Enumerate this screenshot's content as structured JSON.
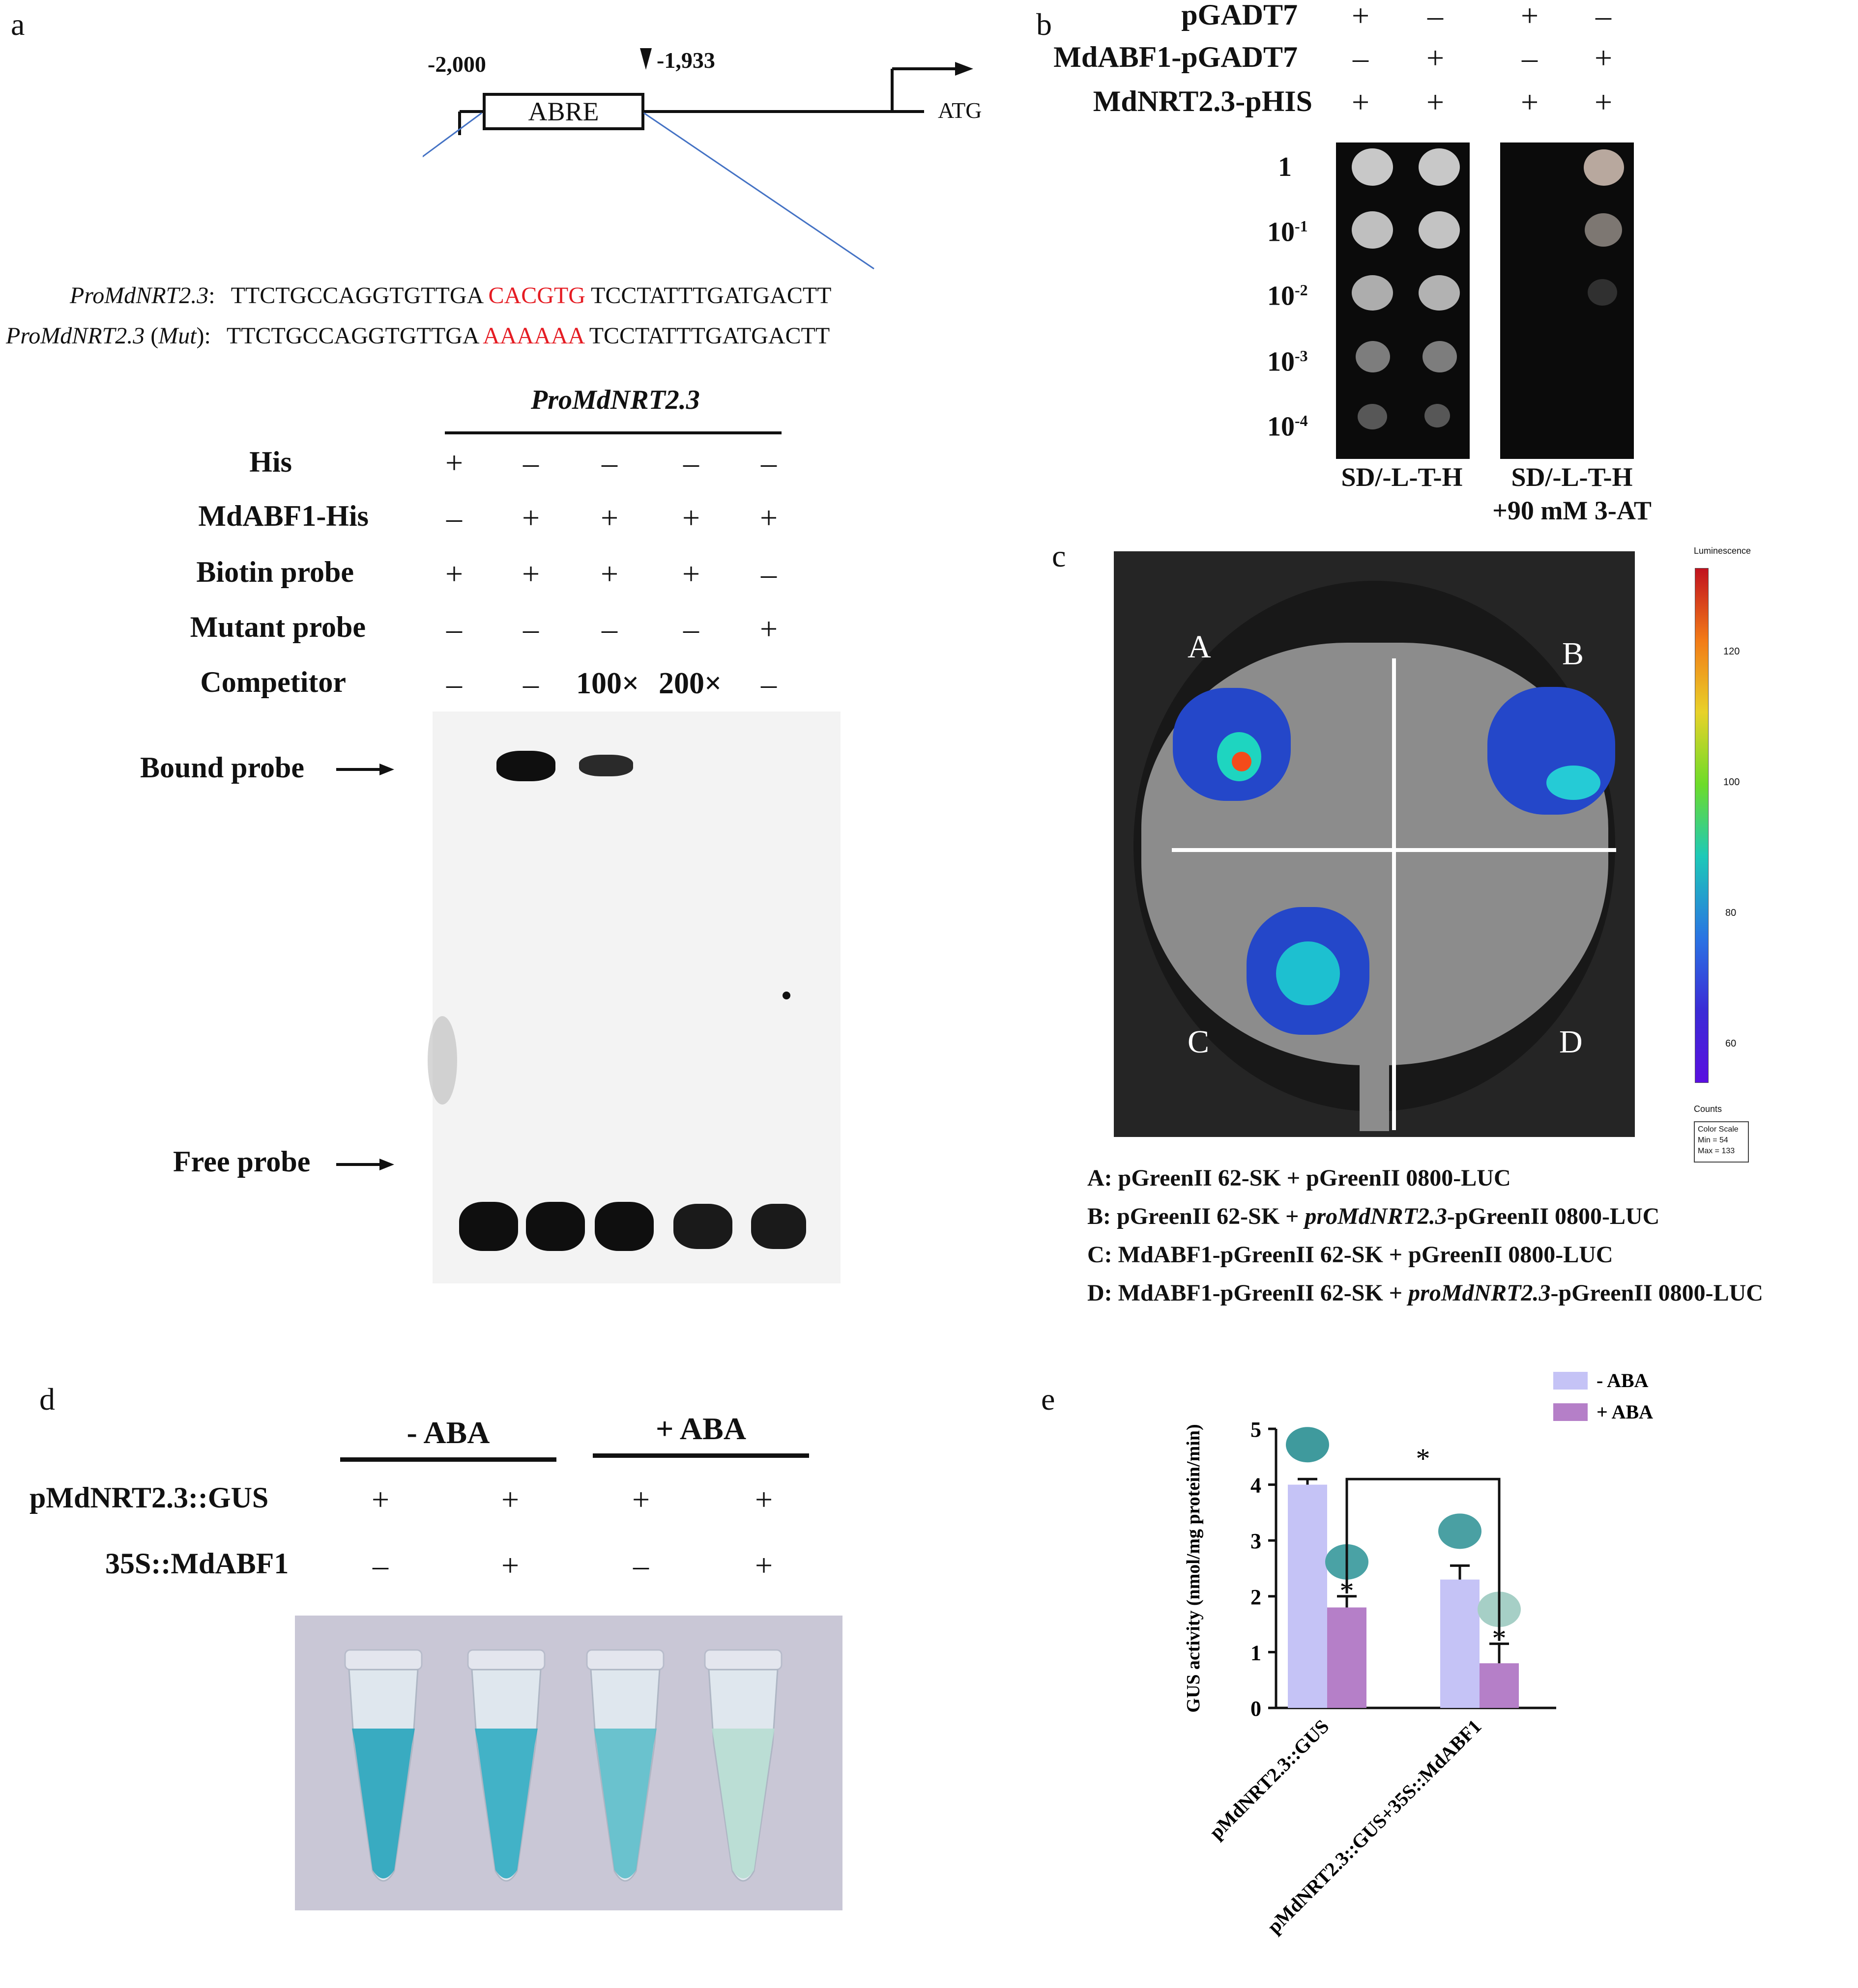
{
  "panel_a": {
    "letter": "a",
    "promoter": {
      "start_label": "-2,000",
      "site_label": "-1,933",
      "box_label": "ABRE",
      "atg_label": "ATG"
    },
    "seq_wt_name": "ProMdNRT2.3",
    "seq_wt_prefix": "TTCTGCCAGGTGTTGA",
    "seq_wt_motif": "CACGTG",
    "seq_wt_suffix": "TCCTATTTGATGACTT",
    "seq_mut_name": "ProMdNRT2.3",
    "seq_mut_tag": "Mut",
    "seq_mut_prefix": "TTCTGCCAGGTGTTGA",
    "seq_mut_motif": "AAAAAA",
    "seq_mut_suffix": "TCCTATTTGATGACTT",
    "emsa_header": "ProMdNRT2.3",
    "rows": [
      {
        "label": "His",
        "signs": [
          "+",
          "–",
          "–",
          "–",
          "–"
        ]
      },
      {
        "label": "MdABF1-His",
        "signs": [
          "–",
          "+",
          "+",
          "+",
          "+"
        ]
      },
      {
        "label": "Biotin probe",
        "signs": [
          "+",
          "+",
          "+",
          "+",
          "–"
        ]
      },
      {
        "label": "Mutant probe",
        "signs": [
          "–",
          "–",
          "–",
          "–",
          "+"
        ]
      },
      {
        "label": "Competitor",
        "signs": [
          "–",
          "–",
          "100×",
          "200×",
          "–"
        ]
      }
    ],
    "bound_label": "Bound probe",
    "free_label": "Free probe"
  },
  "panel_b": {
    "letter": "b",
    "rows": [
      {
        "label": "pGADT7",
        "signs": [
          "+",
          "–",
          "+",
          "–"
        ]
      },
      {
        "label": "MdABF1-pGADT7",
        "signs": [
          "–",
          "+",
          "–",
          "+"
        ]
      },
      {
        "label": "MdNRT2.3-pHIS",
        "signs": [
          "+",
          "+",
          "+",
          "+"
        ]
      }
    ],
    "dilutions": [
      {
        "base": "1",
        "exp": ""
      },
      {
        "base": "10",
        "exp": "-1"
      },
      {
        "base": "10",
        "exp": "-2"
      },
      {
        "base": "10",
        "exp": "-3"
      },
      {
        "base": "10",
        "exp": "-4"
      }
    ],
    "plate1_label": "SD/-L-T-H",
    "plate2_label_line1": "SD/-L-T-H",
    "plate2_label_line2": "+90 mM 3-AT"
  },
  "panel_c": {
    "letter": "c",
    "quadrants": [
      "A",
      "B",
      "C",
      "D"
    ],
    "scale_title": "Luminescence",
    "scale_ticks": [
      "120",
      "100",
      "80",
      "60"
    ],
    "scale_counts": "Counts",
    "scale_box": [
      "Color Scale",
      "Min = 54",
      "Max = 133"
    ],
    "legend": [
      {
        "prefix": "A: pGreenII 62-SK + pGreenII 0800-LUC",
        "ital": "",
        "suffix": ""
      },
      {
        "prefix": "B: pGreenII 62-SK + ",
        "ital": "proMdNRT2.3",
        "suffix": "-pGreenII 0800-LUC"
      },
      {
        "prefix": "C: MdABF1-pGreenII 62-SK + pGreenII 0800-LUC",
        "ital": "",
        "suffix": ""
      },
      {
        "prefix": "D: MdABF1-pGreenII 62-SK + ",
        "ital": "proMdNRT2.3",
        "suffix": "-pGreenII 0800-LUC"
      }
    ]
  },
  "panel_d": {
    "letter": "d",
    "group1": "- ABA",
    "group2": "+ ABA",
    "rows": [
      {
        "label": "pMdNRT2.3::GUS",
        "signs": [
          "+",
          "+",
          "+",
          "+"
        ]
      },
      {
        "label": "35S::MdABF1",
        "signs": [
          "–",
          "+",
          "–",
          "+"
        ]
      }
    ],
    "tube_colors": [
      "#2aa6bd",
      "#34aec3",
      "#5fbfcb",
      "#b7ddd3"
    ]
  },
  "panel_e": {
    "letter": "e",
    "chart_data": {
      "type": "bar",
      "categories": [
        "pMdNRT2.3::GUS",
        "pMdNRT2.3::GUS+35S::MdABF1"
      ],
      "series": [
        {
          "name": "- ABA",
          "values": [
            4.0,
            2.3
          ],
          "errors": [
            0.1,
            0.25
          ],
          "color": "#c5c3f6"
        },
        {
          "name": "+ ABA",
          "values": [
            1.8,
            0.8
          ],
          "errors": [
            0.2,
            0.35
          ],
          "color": "#b57fc8"
        }
      ],
      "significance": [
        "",
        "*",
        "",
        "*"
      ],
      "bracket_label": "*",
      "ylabel": "GUS activity (nmol/mg protein/min)",
      "ylim": [
        0,
        5
      ],
      "yticks": [
        "0",
        "1",
        "2",
        "3",
        "4",
        "5"
      ],
      "legend_position": "top-right"
    },
    "blob_colors": [
      "#3f9a9d",
      "#4aa2a5",
      "#4aa0a3",
      "#a6cfc6"
    ]
  }
}
